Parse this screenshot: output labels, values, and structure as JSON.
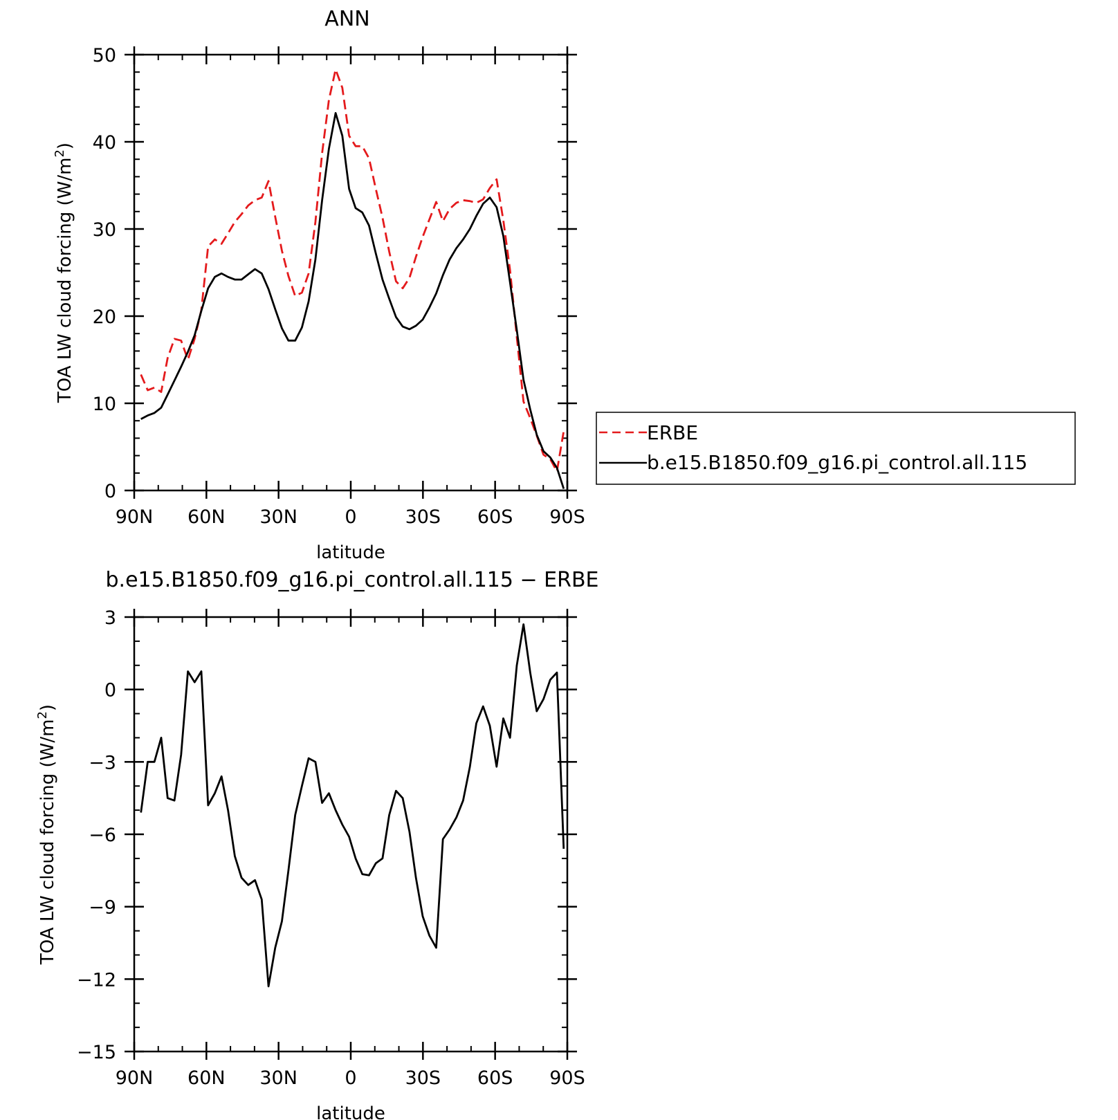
{
  "chart_data": [
    {
      "type": "line",
      "title": "ANN",
      "xlabel": "latitude",
      "ylabel": "TOA LW cloud forcing (W/m",
      "ylabel_sup": "2",
      "ylabel_close": ")",
      "xlim": [
        90,
        -90
      ],
      "ylim": [
        0,
        50
      ],
      "xticks": [
        90,
        60,
        30,
        0,
        -30,
        -60,
        -90
      ],
      "xtick_labels": [
        "90N",
        "60N",
        "30N",
        "0",
        "30S",
        "60S",
        "90S"
      ],
      "yticks": [
        0,
        10,
        20,
        30,
        40,
        50
      ],
      "ytick_labels": [
        "0",
        "10",
        "20",
        "30",
        "40",
        "50"
      ],
      "legend_position": "right",
      "x": [
        87.2,
        84.4,
        81.6,
        78.8,
        76.1,
        73.3,
        70.5,
        67.7,
        64.9,
        62.1,
        59.3,
        56.5,
        53.7,
        51.0,
        48.2,
        45.4,
        42.6,
        39.8,
        37.0,
        34.2,
        31.4,
        28.6,
        25.9,
        23.1,
        20.3,
        17.5,
        14.7,
        11.9,
        9.1,
        6.3,
        3.5,
        0.7,
        -2.0,
        -4.8,
        -7.6,
        -10.4,
        -13.2,
        -16.0,
        -18.8,
        -21.6,
        -24.4,
        -27.1,
        -29.9,
        -32.7,
        -35.5,
        -38.3,
        -41.1,
        -43.9,
        -46.7,
        -49.5,
        -52.2,
        -55.0,
        -57.8,
        -60.6,
        -63.4,
        -66.2,
        -69.0,
        -71.8,
        -74.6,
        -77.3,
        -80.1,
        -82.9,
        -85.7,
        -88.5
      ],
      "series": [
        {
          "name": "ERBE",
          "color": "#e41a1c",
          "dash": "dashed",
          "values": [
            13.3,
            11.5,
            11.8,
            11.3,
            15.2,
            17.4,
            17.2,
            15.0,
            17.4,
            20.7,
            28.0,
            28.8,
            28.3,
            29.5,
            30.8,
            31.7,
            32.7,
            33.3,
            33.6,
            35.5,
            31.4,
            27.5,
            24.6,
            22.3,
            22.7,
            24.9,
            30.8,
            38.7,
            44.8,
            48.3,
            46.2,
            40.7,
            39.5,
            39.5,
            38.1,
            34.6,
            31.3,
            27.4,
            24.0,
            23.2,
            24.4,
            26.8,
            29.1,
            31.1,
            33.1,
            30.9,
            32.3,
            33.0,
            33.3,
            33.2,
            33.0,
            33.4,
            34.7,
            35.7,
            31.0,
            25.3,
            17.6,
            10.2,
            8.3,
            6.3,
            4.1,
            3.6,
            2.2,
            6.8
          ]
        },
        {
          "name": "b.e15.B1850.f09_g16.pi_control.all.115",
          "color": "#000000",
          "dash": "solid",
          "values": [
            8.2,
            8.6,
            8.9,
            9.5,
            11.0,
            12.6,
            14.2,
            15.9,
            17.8,
            20.6,
            23.2,
            24.5,
            24.9,
            24.5,
            24.2,
            24.2,
            24.8,
            25.4,
            24.9,
            23.1,
            20.8,
            18.6,
            17.2,
            17.2,
            18.7,
            21.7,
            26.5,
            33.3,
            39.2,
            43.3,
            40.7,
            34.6,
            32.4,
            31.9,
            30.4,
            27.2,
            24.2,
            22.0,
            19.9,
            18.8,
            18.5,
            18.9,
            19.6,
            21.0,
            22.6,
            24.7,
            26.5,
            27.8,
            28.8,
            30.0,
            31.5,
            32.9,
            33.6,
            32.5,
            29.2,
            23.9,
            18.4,
            12.7,
            9.3,
            6.4,
            4.5,
            3.8,
            2.6,
            0.2
          ]
        }
      ]
    },
    {
      "type": "line",
      "title": "b.e15.B1850.f09_g16.pi_control.all.115 − ERBE",
      "xlabel": "latitude",
      "ylabel": "TOA LW cloud forcing (W/m",
      "ylabel_sup": "2",
      "ylabel_close": ")",
      "xlim": [
        90,
        -90
      ],
      "ylim": [
        -15,
        3
      ],
      "xticks": [
        90,
        60,
        30,
        0,
        -30,
        -60,
        -90
      ],
      "xtick_labels": [
        "90N",
        "60N",
        "30N",
        "0",
        "30S",
        "60S",
        "90S"
      ],
      "yticks": [
        3,
        0,
        -3,
        -6,
        -9,
        -12,
        -15
      ],
      "ytick_labels": [
        "3",
        "0",
        "−3",
        "−6",
        "−9",
        "−12",
        "−15"
      ],
      "x": [
        87.2,
        84.4,
        81.6,
        78.8,
        76.1,
        73.3,
        70.5,
        67.7,
        64.9,
        62.1,
        59.3,
        56.5,
        53.7,
        51.0,
        48.2,
        45.4,
        42.6,
        39.8,
        37.0,
        34.2,
        31.4,
        28.6,
        25.9,
        23.1,
        20.3,
        17.5,
        14.7,
        11.9,
        9.1,
        6.3,
        3.5,
        0.7,
        -2.0,
        -4.8,
        -7.6,
        -10.4,
        -13.2,
        -16.0,
        -18.8,
        -21.6,
        -24.4,
        -27.1,
        -29.9,
        -32.7,
        -35.5,
        -38.3,
        -41.1,
        -43.9,
        -46.7,
        -49.5,
        -52.2,
        -55.0,
        -57.8,
        -60.6,
        -63.4,
        -66.2,
        -69.0,
        -71.8,
        -74.6,
        -77.3,
        -80.1,
        -82.9,
        -85.7,
        -88.5
      ],
      "series": [
        {
          "color": "#000000",
          "dash": "solid",
          "values": [
            -5.1,
            -3.0,
            -3.0,
            -2.0,
            -4.5,
            -4.6,
            -2.7,
            0.75,
            0.3,
            0.75,
            -4.8,
            -4.3,
            -3.6,
            -5.0,
            -6.9,
            -7.8,
            -8.1,
            -7.9,
            -8.7,
            -12.3,
            -10.7,
            -9.6,
            -7.5,
            -5.2,
            -4.0,
            -2.85,
            -3.0,
            -4.7,
            -4.3,
            -5.0,
            -5.6,
            -6.1,
            -7.0,
            -7.65,
            -7.7,
            -7.2,
            -7.0,
            -5.2,
            -4.2,
            -4.5,
            -5.9,
            -7.8,
            -9.4,
            -10.2,
            -10.7,
            -6.2,
            -5.8,
            -5.3,
            -4.6,
            -3.2,
            -1.4,
            -0.7,
            -1.5,
            -3.2,
            -1.2,
            -2.0,
            1.0,
            2.7,
            0.7,
            -0.9,
            -0.4,
            0.4,
            0.7,
            -6.6
          ]
        }
      ]
    }
  ]
}
